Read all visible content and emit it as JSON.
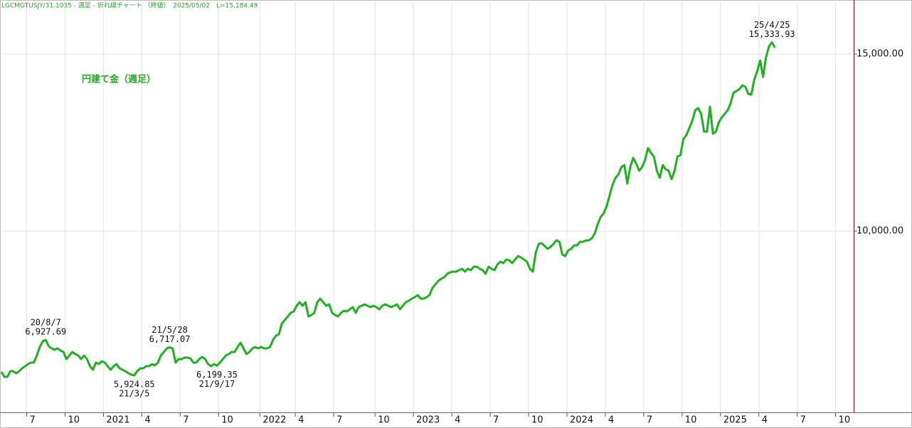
{
  "chart_data": {
    "type": "line",
    "subtitle": "LGCMGTUSJY/31.1035 - 週足 - 折れ線チャート （終値）　2025/05/02　L=15,184.49",
    "title": "円建て金（週足）",
    "color": "#1fb01f",
    "grid": true,
    "ylim": [
      4880,
      16530
    ],
    "yticks": [
      {
        "value": 10000,
        "label": "10,000.00"
      },
      {
        "value": 15000,
        "label": "15,000.00"
      }
    ],
    "categories": [
      null,
      null,
      null,
      null,
      null,
      null,
      null,
      null,
      null,
      null,
      "7",
      null,
      null,
      null,
      null,
      null,
      null,
      null,
      null,
      null,
      null,
      null,
      null,
      "10",
      null,
      null,
      null,
      null,
      null,
      null,
      null,
      null,
      null,
      null,
      null,
      null,
      "2021",
      null,
      null,
      null,
      null,
      null,
      null,
      null,
      null,
      null,
      null,
      null,
      null,
      "4",
      null,
      null,
      null,
      null,
      null,
      null,
      null,
      null,
      null,
      null,
      null,
      null,
      "7",
      null,
      null,
      null,
      null,
      null,
      null,
      null,
      null,
      null,
      null,
      null,
      null,
      "10",
      null,
      null,
      null,
      null,
      null,
      null,
      null,
      null,
      null,
      null,
      null,
      null,
      null,
      "2022",
      null,
      null,
      null,
      null,
      null,
      null,
      null,
      null,
      null,
      null,
      null,
      "4",
      null,
      null,
      null,
      null,
      null,
      null,
      null,
      null,
      null,
      null,
      null,
      null,
      "7",
      null,
      null,
      null,
      null,
      null,
      null,
      null,
      null,
      null,
      null,
      null,
      null,
      null,
      "10",
      null,
      null,
      null,
      null,
      null,
      null,
      null,
      null,
      null,
      null,
      null,
      null,
      "2023",
      null,
      null,
      null,
      null,
      null,
      null,
      null,
      null,
      null,
      null,
      null,
      null,
      "4",
      null,
      null,
      null,
      null,
      null,
      null,
      null,
      null,
      null,
      null,
      null,
      null,
      "7",
      null,
      null,
      null,
      null,
      null,
      null,
      null,
      null,
      null,
      null,
      null,
      null,
      "10",
      null,
      null,
      null,
      null,
      null,
      null,
      null,
      null,
      null,
      null,
      null,
      null,
      "2024",
      null,
      null,
      null,
      null,
      null,
      null,
      null,
      null,
      null,
      null,
      null,
      null,
      "4",
      null,
      null,
      null,
      null,
      null,
      null,
      null,
      null,
      null,
      null,
      null,
      null,
      "7",
      null,
      null,
      null,
      null,
      null,
      null,
      null,
      null,
      null,
      null,
      null,
      null,
      "10",
      null,
      null,
      null,
      null,
      null,
      null,
      null,
      null,
      null,
      null,
      null,
      null,
      "2025",
      null,
      null,
      null,
      null,
      null,
      null,
      null,
      null,
      null,
      null,
      null,
      null,
      "4",
      null,
      null,
      null,
      null,
      null,
      null,
      null,
      null,
      null,
      null,
      null,
      null,
      "7",
      null,
      null,
      null,
      null,
      null,
      null,
      null,
      null,
      null,
      null,
      null,
      null,
      "10",
      null,
      null,
      null,
      null
    ],
    "values": [
      6024,
      5884,
      5884,
      6044,
      6044,
      5984,
      6044,
      6124,
      6185,
      6245,
      6285,
      6285,
      6486,
      6727,
      6888,
      6927.69,
      6747,
      6687,
      6647,
      6687,
      6627,
      6586,
      6385,
      6486,
      6586,
      6526,
      6486,
      6385,
      6486,
      6385,
      6185,
      6084,
      6285,
      6245,
      6325,
      6285,
      6185,
      6084,
      6185,
      6245,
      6124,
      6084,
      6044,
      5984,
      5944,
      5924.85,
      6044,
      6124,
      6124,
      6185,
      6185,
      6245,
      6205,
      6285,
      6486,
      6586,
      6687,
      6717.07,
      6687,
      6285,
      6385,
      6385,
      6426,
      6426,
      6406,
      6285,
      6285,
      6385,
      6446,
      6385,
      6245,
      6185,
      6245,
      6199.35,
      6285,
      6385,
      6486,
      6526,
      6586,
      6586,
      6727,
      6847,
      6687,
      6526,
      6586,
      6687,
      6727,
      6687,
      6727,
      6687,
      6687,
      6727,
      6928,
      7048,
      7088,
      7390,
      7490,
      7590,
      7691,
      7731,
      7892,
      7992,
      7892,
      7992,
      7590,
      7631,
      7691,
      7992,
      8092,
      7992,
      7892,
      7932,
      7691,
      7631,
      7590,
      7691,
      7751,
      7731,
      7791,
      7851,
      7691,
      7851,
      7892,
      7932,
      7892,
      7851,
      7892,
      7851,
      7791,
      7892,
      7932,
      7892,
      7851,
      7892,
      7932,
      7791,
      7892,
      7992,
      8032,
      8092,
      8133,
      8193,
      8092,
      8092,
      8133,
      8193,
      8394,
      8494,
      8594,
      8655,
      8695,
      8795,
      8835,
      8855,
      8855,
      8896,
      8936,
      8855,
      8936,
      8896,
      8996,
      8996,
      8936,
      8896,
      8795,
      8996,
      8936,
      8896,
      9056,
      9137,
      9096,
      9197,
      9177,
      9096,
      9197,
      9297,
      9257,
      9197,
      9137,
      8936,
      8855,
      9398,
      9639,
      9659,
      9578,
      9498,
      9558,
      9639,
      9739,
      9699,
      9337,
      9297,
      9458,
      9498,
      9598,
      9598,
      9699,
      9699,
      9739,
      9739,
      9799,
      9940,
      10201,
      10402,
      10502,
      10703,
      11004,
      11305,
      11506,
      11606,
      11807,
      11867,
      11345,
      11807,
      12068,
      11908,
      11707,
      11807,
      12008,
      12349,
      12209,
      12108,
      11707,
      11506,
      11867,
      11747,
      11707,
      11466,
      11707,
      12108,
      12149,
      12610,
      12711,
      12912,
      13112,
      13414,
      13474,
      13313,
      12811,
      12811,
      13514,
      12751,
      12811,
      13072,
      13213,
      13313,
      13414,
      13615,
      13916,
      13956,
      14016,
      14116,
      14076,
      13876,
      13856,
      14277,
      14518,
      14819,
      14357,
      14920,
      15221,
      15333.93,
      15184.49,
      null,
      null,
      null,
      null,
      null,
      null,
      null,
      null,
      null,
      null,
      null,
      null,
      null,
      null,
      null,
      null,
      null,
      null,
      null,
      null,
      null,
      null,
      null,
      null,
      null,
      null
    ],
    "annotations": [
      {
        "date": "20/8/7",
        "value_label": "6,927.69",
        "position": "above"
      },
      {
        "date": "21/3/5",
        "value_label": "5,924.85",
        "position": "below"
      },
      {
        "date": "21/5/28",
        "value_label": "6,717.07",
        "position": "above"
      },
      {
        "date": "21/9/17",
        "value_label": "6,199.35",
        "position": "below"
      },
      {
        "date": "25/4/25",
        "value_label": "15,333.93",
        "position": "above"
      }
    ]
  }
}
